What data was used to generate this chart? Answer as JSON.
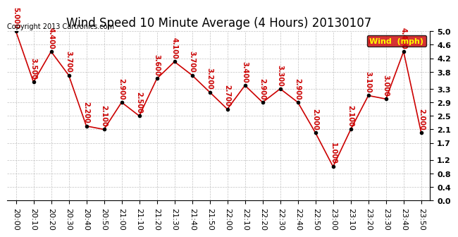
{
  "title": "Wind Speed 10 Minute Average (4 Hours) 20130107",
  "copyright": "Copyright 2013 Cartronics.com",
  "legend_label": "Wind  (mph)",
  "x_labels": [
    "20:00",
    "20:10",
    "20:20",
    "20:30",
    "20:40",
    "20:50",
    "21:00",
    "21:10",
    "21:20",
    "21:30",
    "21:40",
    "21:50",
    "22:00",
    "22:10",
    "22:20",
    "22:30",
    "22:40",
    "22:50",
    "23:00",
    "23:10",
    "23:20",
    "23:30",
    "23:40",
    "23:50"
  ],
  "y_values": [
    5.0,
    3.5,
    4.4,
    3.7,
    2.2,
    2.1,
    2.9,
    2.5,
    3.6,
    4.1,
    3.7,
    3.2,
    2.7,
    3.4,
    2.9,
    3.3,
    2.9,
    2.0,
    1.0,
    2.1,
    3.1,
    3.0,
    4.4,
    2.0
  ],
  "point_labels": [
    "5.000",
    "3.500",
    "4.400",
    "3.700",
    "2.200",
    "2.100",
    "2.900",
    "2.500",
    "3.600",
    "4.100",
    "3.700",
    "3.200",
    "2.700",
    "3.400",
    "2.900",
    "3.300",
    "2.900",
    "2.000",
    "1.000",
    "2.100",
    "3.100",
    "3.000",
    "4.400",
    "2.000"
  ],
  "line_color": "#cc0000",
  "marker_color": "#000000",
  "label_color": "#cc0000",
  "background_color": "#ffffff",
  "grid_color": "#bbbbbb",
  "ylim": [
    0.0,
    5.0
  ],
  "yticks": [
    0.0,
    0.4,
    0.8,
    1.2,
    1.7,
    2.1,
    2.5,
    2.9,
    3.3,
    3.8,
    4.2,
    4.6,
    5.0
  ],
  "title_fontsize": 12,
  "label_fontsize": 7,
  "tick_fontsize": 8,
  "legend_bg": "#cc0000",
  "legend_text_color": "#ffff00"
}
